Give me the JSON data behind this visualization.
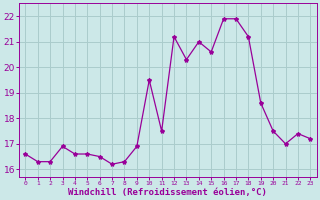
{
  "x": [
    0,
    1,
    2,
    3,
    4,
    5,
    6,
    7,
    8,
    9,
    10,
    11,
    12,
    13,
    14,
    15,
    16,
    17,
    18,
    19,
    20,
    21,
    22,
    23
  ],
  "y": [
    16.6,
    16.3,
    16.3,
    16.9,
    16.6,
    16.6,
    16.5,
    16.2,
    16.3,
    16.9,
    19.5,
    17.5,
    21.2,
    20.3,
    21.0,
    20.6,
    21.9,
    21.9,
    21.2,
    18.6,
    17.5,
    17.0,
    17.4,
    17.2
  ],
  "line_color": "#990099",
  "marker": "*",
  "marker_size": 3,
  "background_color": "#cce8e8",
  "grid_color": "#aacccc",
  "ylabel_ticks": [
    16,
    17,
    18,
    19,
    20,
    21,
    22
  ],
  "xtick_labels": [
    "0",
    "1",
    "2",
    "3",
    "4",
    "5",
    "6",
    "7",
    "8",
    "9",
    "10",
    "11",
    "12",
    "13",
    "14",
    "15",
    "16",
    "17",
    "18",
    "19",
    "20",
    "21",
    "22",
    "23"
  ],
  "xlabel": "Windchill (Refroidissement éolien,°C)",
  "ylim": [
    15.7,
    22.5
  ],
  "xlim": [
    -0.5,
    23.5
  ],
  "axis_color": "#990099",
  "tick_color": "#990099",
  "label_color": "#990099",
  "ytick_fontsize": 6.5,
  "xtick_fontsize": 4.5,
  "xlabel_fontsize": 6.5
}
